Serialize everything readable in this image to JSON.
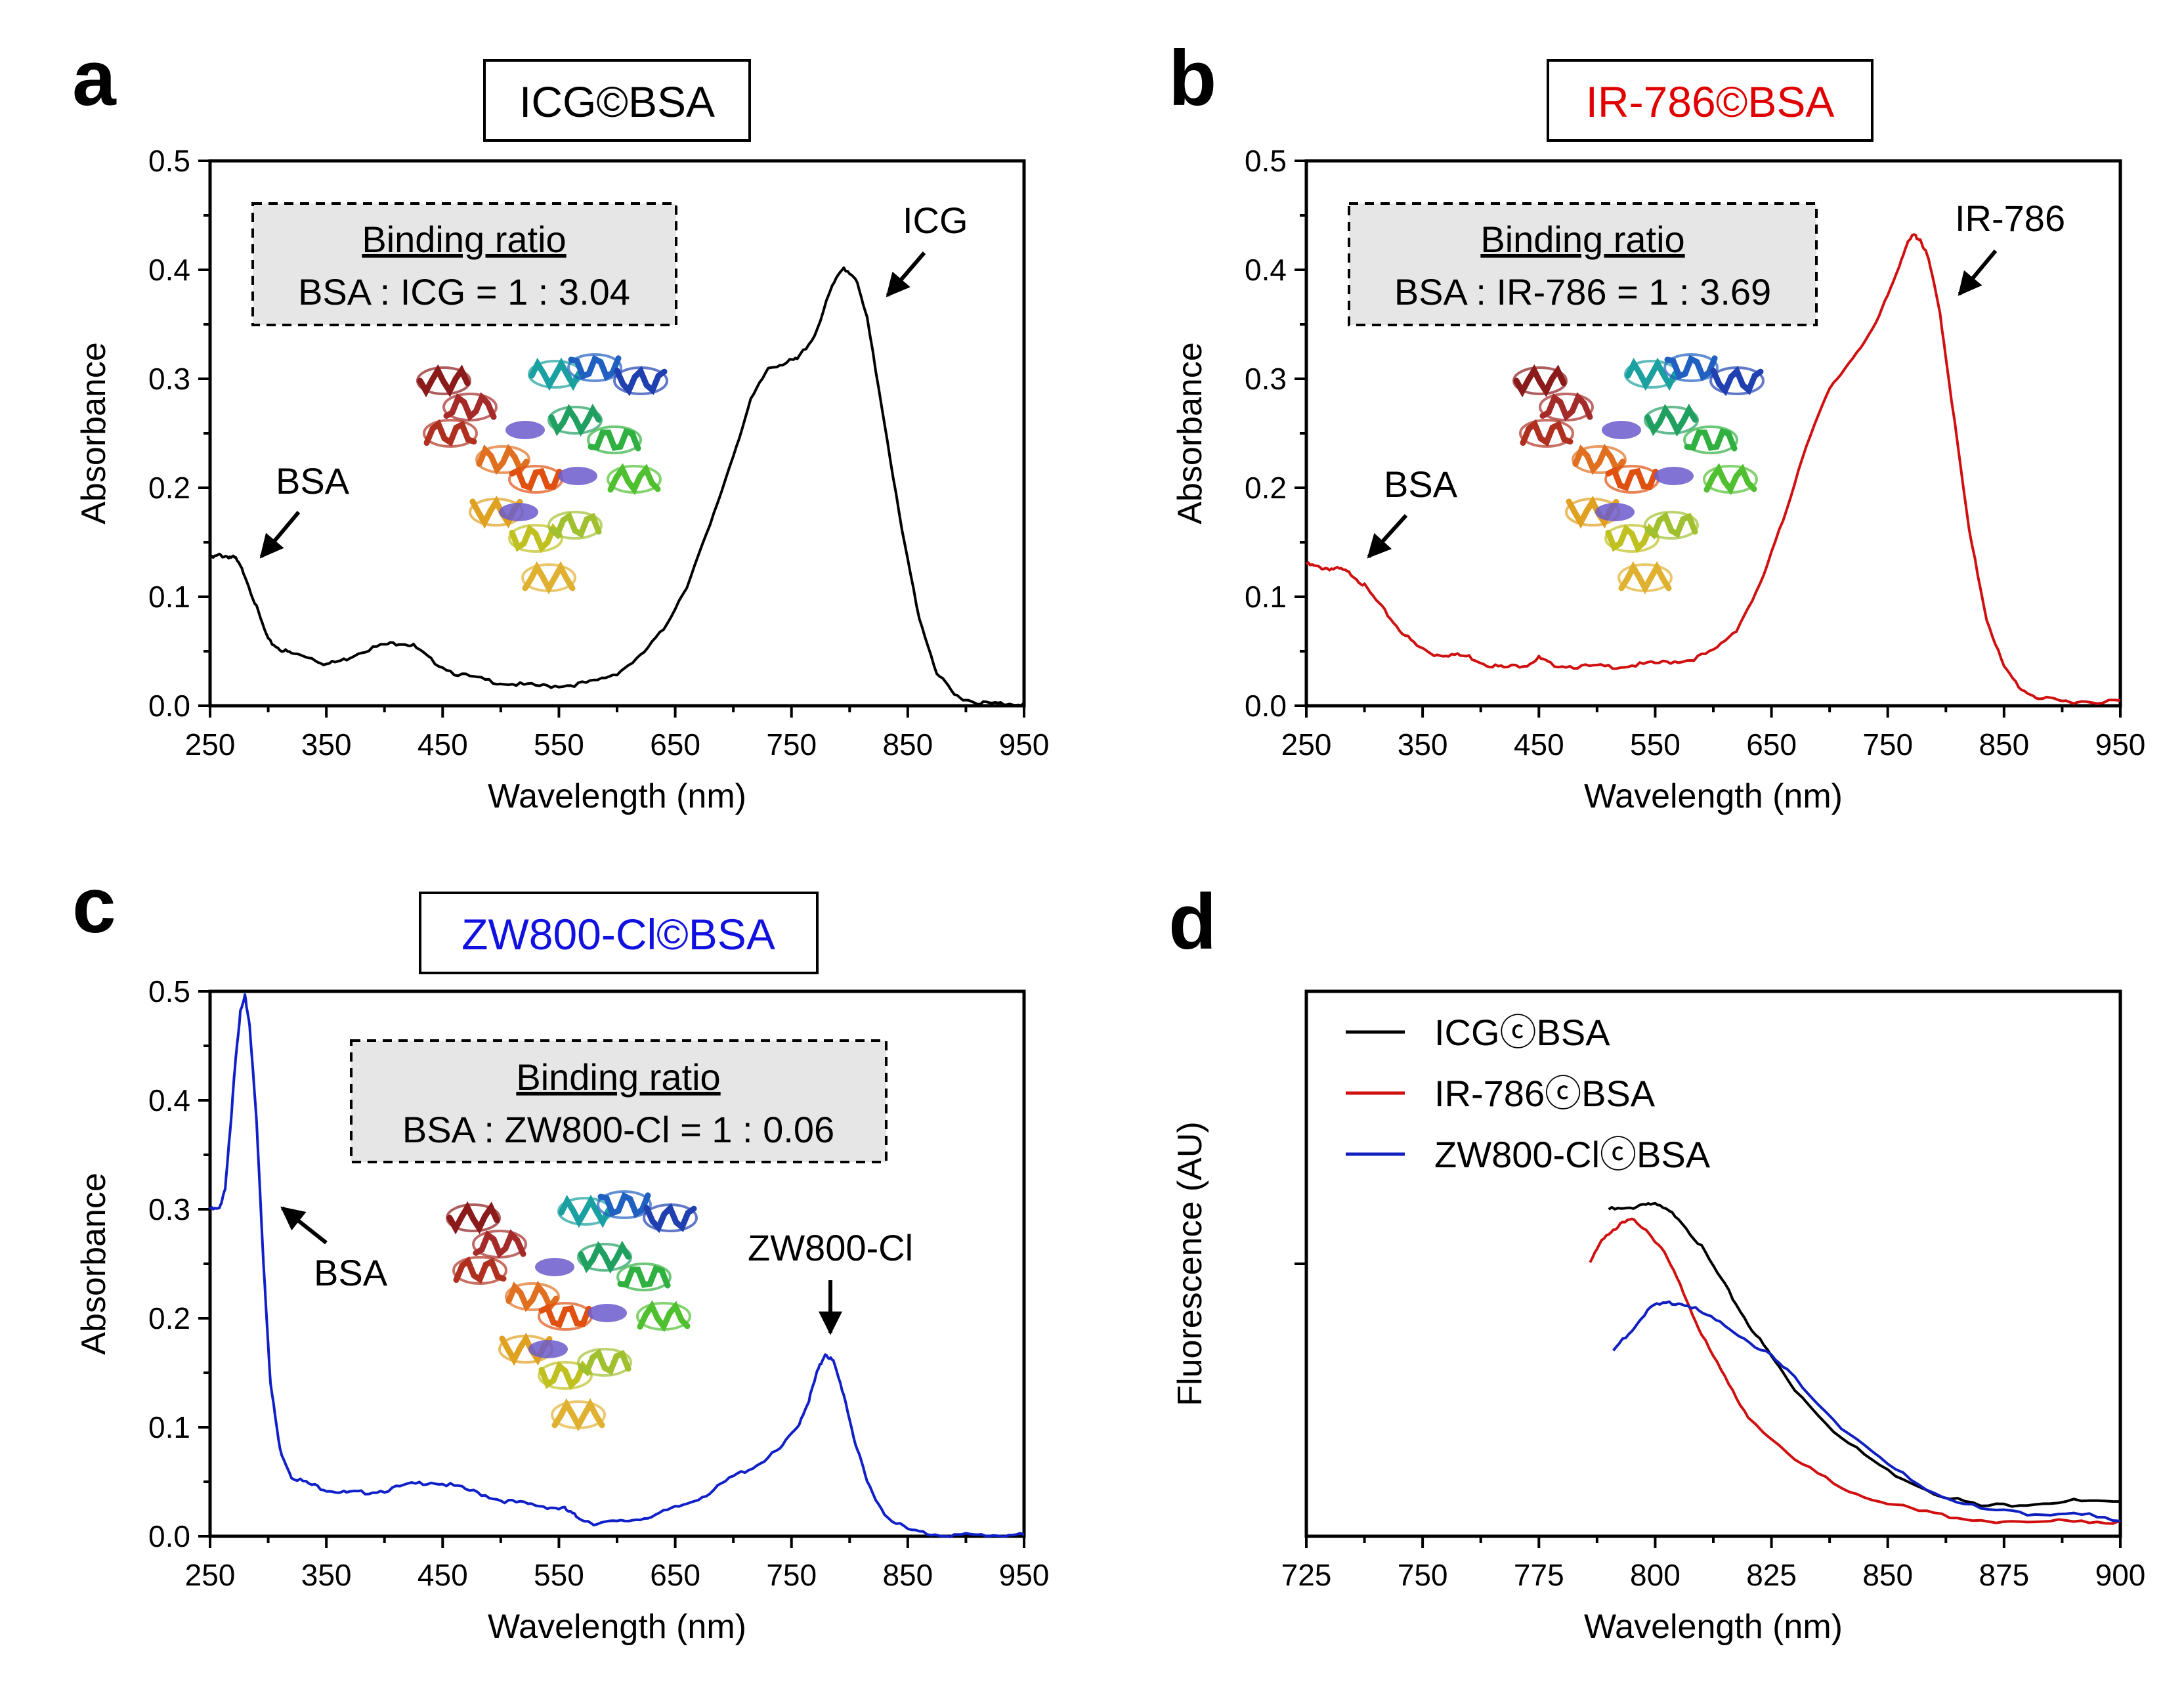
{
  "chart_data": [
    {
      "panel": "a",
      "type": "line",
      "title": "ICG©BSA",
      "title_color": "#000000",
      "line_color": "#000000",
      "xlabel": "Wavelength (nm)",
      "ylabel": "Absorbance",
      "xlim": [
        250,
        950
      ],
      "ylim": [
        0,
        0.5
      ],
      "xticks": [
        "250",
        "350",
        "450",
        "550",
        "650",
        "750",
        "850",
        "950"
      ],
      "yticks": [
        "0.0",
        "0.1",
        "0.2",
        "0.3",
        "0.4",
        "0.5"
      ],
      "ratio_title": "Binding ratio",
      "ratio_text": "BSA : ICG = 1 : 3.04",
      "annotations": [
        {
          "label": "BSA",
          "arrow_to": [
            270,
            0.133
          ],
          "direction": "down-left"
        },
        {
          "label": "ICG",
          "arrow_to": [
            832,
            0.38
          ],
          "direction": "down-left"
        }
      ],
      "x": [
        250,
        258,
        266,
        272,
        280,
        290,
        300,
        310,
        320,
        335,
        350,
        365,
        380,
        400,
        415,
        425,
        440,
        460,
        480,
        500,
        520,
        540,
        560,
        580,
        600,
        620,
        640,
        660,
        680,
        700,
        715,
        730,
        745,
        755,
        770,
        785,
        795,
        805,
        815,
        830,
        845,
        860,
        875,
        890,
        905,
        920,
        935,
        950
      ],
      "values": [
        0.135,
        0.138,
        0.137,
        0.135,
        0.12,
        0.09,
        0.06,
        0.052,
        0.048,
        0.045,
        0.038,
        0.042,
        0.05,
        0.056,
        0.058,
        0.055,
        0.042,
        0.03,
        0.025,
        0.021,
        0.019,
        0.018,
        0.019,
        0.022,
        0.03,
        0.045,
        0.07,
        0.11,
        0.165,
        0.23,
        0.28,
        0.31,
        0.315,
        0.318,
        0.34,
        0.385,
        0.402,
        0.393,
        0.355,
        0.26,
        0.16,
        0.08,
        0.03,
        0.01,
        0.004,
        0.002,
        0.002,
        0.002
      ]
    },
    {
      "panel": "b",
      "type": "line",
      "title": "IR-786©BSA",
      "title_color": "#e00000",
      "line_color": "#d01010",
      "xlabel": "Wavelength (nm)",
      "ylabel": "Absorbance",
      "xlim": [
        250,
        950
      ],
      "ylim": [
        0,
        0.5
      ],
      "xticks": [
        "250",
        "350",
        "450",
        "550",
        "650",
        "750",
        "850",
        "950"
      ],
      "yticks": [
        "0.0",
        "0.1",
        "0.2",
        "0.3",
        "0.4",
        "0.5"
      ],
      "ratio_title": "Binding ratio",
      "ratio_text": "BSA : IR-786 = 1 : 3.69",
      "annotations": [
        {
          "label": "BSA",
          "arrow_to": [
            305,
            0.13
          ],
          "direction": "down-left"
        },
        {
          "label": "IR-786",
          "arrow_to": [
            810,
            0.38
          ],
          "direction": "down-left"
        }
      ],
      "x": [
        250,
        260,
        270,
        280,
        290,
        300,
        315,
        330,
        345,
        360,
        375,
        390,
        405,
        420,
        440,
        450,
        460,
        480,
        500,
        520,
        540,
        560,
        580,
        600,
        620,
        640,
        660,
        680,
        700,
        720,
        740,
        755,
        765,
        772,
        778,
        785,
        795,
        805,
        820,
        835,
        850,
        865,
        880,
        900,
        920,
        950
      ],
      "values": [
        0.13,
        0.127,
        0.126,
        0.125,
        0.12,
        0.11,
        0.09,
        0.07,
        0.055,
        0.047,
        0.047,
        0.045,
        0.038,
        0.035,
        0.038,
        0.044,
        0.038,
        0.036,
        0.036,
        0.036,
        0.038,
        0.04,
        0.042,
        0.05,
        0.07,
        0.11,
        0.17,
        0.24,
        0.29,
        0.32,
        0.35,
        0.39,
        0.42,
        0.432,
        0.428,
        0.41,
        0.36,
        0.28,
        0.16,
        0.08,
        0.035,
        0.015,
        0.007,
        0.004,
        0.004,
        0.004
      ]
    },
    {
      "panel": "c",
      "type": "line",
      "title": "ZW800-Cl©BSA",
      "title_color": "#1010e0",
      "line_color": "#1020c8",
      "xlabel": "Wavelength (nm)",
      "ylabel": "Absorbance",
      "xlim": [
        250,
        950
      ],
      "ylim": [
        0,
        0.5
      ],
      "xticks": [
        "250",
        "350",
        "450",
        "550",
        "650",
        "750",
        "850",
        "950"
      ],
      "yticks": [
        "0.0",
        "0.1",
        "0.2",
        "0.3",
        "0.4",
        "0.5"
      ],
      "ratio_title": "Binding ratio",
      "ratio_text": "BSA : ZW800-Cl = 1 : 0.06",
      "annotations": [
        {
          "label": "BSA",
          "arrow_to": [
            308,
            0.298
          ],
          "direction": "up-left"
        },
        {
          "label": "ZW800-Cl",
          "arrow_to": [
            779,
            0.18
          ],
          "direction": "down"
        }
      ],
      "x": [
        250,
        258,
        263,
        268,
        272,
        276,
        280,
        284,
        290,
        296,
        302,
        310,
        320,
        335,
        350,
        365,
        380,
        400,
        420,
        440,
        460,
        480,
        500,
        520,
        540,
        555,
        565,
        580,
        600,
        620,
        640,
        660,
        680,
        700,
        720,
        740,
        755,
        765,
        772,
        779,
        786,
        795,
        805,
        815,
        830,
        850,
        870,
        890,
        910,
        930,
        950
      ],
      "values": [
        0.3,
        0.3,
        0.32,
        0.38,
        0.44,
        0.48,
        0.495,
        0.47,
        0.38,
        0.25,
        0.14,
        0.08,
        0.055,
        0.048,
        0.043,
        0.04,
        0.04,
        0.042,
        0.047,
        0.05,
        0.046,
        0.04,
        0.033,
        0.03,
        0.027,
        0.025,
        0.018,
        0.012,
        0.013,
        0.016,
        0.022,
        0.03,
        0.04,
        0.055,
        0.065,
        0.08,
        0.1,
        0.125,
        0.15,
        0.168,
        0.16,
        0.13,
        0.085,
        0.05,
        0.02,
        0.006,
        0.002,
        0.001,
        0.001,
        0.001,
        0.001
      ]
    },
    {
      "panel": "d",
      "type": "line",
      "title": "",
      "xlabel": "Wavelength (nm)",
      "ylabel": "Fluorescence (AU)",
      "xlim": [
        725,
        900
      ],
      "ylim": [
        0,
        1
      ],
      "xticks": [
        "725",
        "750",
        "775",
        "800",
        "825",
        "850",
        "875",
        "900"
      ],
      "yticks": [],
      "legend": [
        "ICGⓒBSA",
        "IR-786ⓒBSA",
        "ZW800-ClⓒBSA"
      ],
      "legend_position": "top-left",
      "series": [
        {
          "name": "ICGⓒBSA",
          "color": "#000000",
          "x": [
            790,
            794,
            798,
            801,
            805,
            810,
            815,
            820,
            825,
            830,
            840,
            850,
            860,
            870,
            880,
            890,
            900
          ],
          "values": [
            0.6,
            0.6,
            0.612,
            0.605,
            0.585,
            0.53,
            0.46,
            0.39,
            0.33,
            0.27,
            0.18,
            0.12,
            0.08,
            0.055,
            0.06,
            0.065,
            0.06
          ]
        },
        {
          "name": "IR-786ⓒBSA",
          "color": "#d01010",
          "x": [
            786,
            789,
            792,
            795,
            798,
            802,
            806,
            810,
            815,
            820,
            830,
            840,
            850,
            860,
            870,
            880,
            890,
            900
          ],
          "values": [
            0.5,
            0.55,
            0.57,
            0.58,
            0.565,
            0.52,
            0.45,
            0.37,
            0.29,
            0.22,
            0.14,
            0.09,
            0.06,
            0.04,
            0.03,
            0.025,
            0.03,
            0.025
          ]
        },
        {
          "name": "ZW800-ClⓒBSA",
          "color": "#1020c0",
          "x": [
            791,
            795,
            799,
            803,
            807,
            812,
            818,
            825,
            830,
            840,
            850,
            860,
            870,
            880,
            890,
            900
          ],
          "values": [
            0.34,
            0.38,
            0.42,
            0.43,
            0.425,
            0.4,
            0.37,
            0.33,
            0.29,
            0.2,
            0.13,
            0.08,
            0.05,
            0.04,
            0.045,
            0.025
          ]
        }
      ]
    }
  ]
}
